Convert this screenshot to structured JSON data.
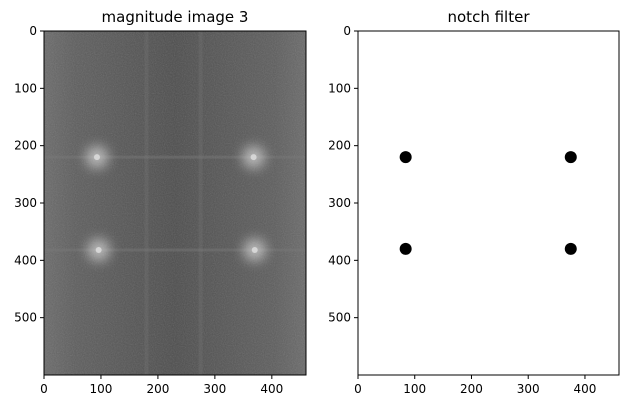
{
  "chart_data": [
    {
      "type": "heatmap",
      "title": "magnitude image 3",
      "xlim": [
        0,
        460
      ],
      "ylim": [
        600,
        0
      ],
      "x_ticks": [
        0,
        100,
        200,
        300,
        400
      ],
      "y_ticks": [
        0,
        100,
        200,
        300,
        400,
        500
      ],
      "colormap": "gray",
      "bright_peaks": [
        {
          "x": 93,
          "y": 220
        },
        {
          "x": 368,
          "y": 220
        },
        {
          "x": 96,
          "y": 382
        },
        {
          "x": 370,
          "y": 382
        }
      ],
      "background_color": "#5e5e5e"
    },
    {
      "type": "scatter",
      "title": "notch filter",
      "xlim": [
        0,
        460
      ],
      "ylim": [
        600,
        0
      ],
      "x_ticks": [
        0,
        100,
        200,
        300,
        400
      ],
      "y_ticks": [
        0,
        100,
        200,
        300,
        400,
        500
      ],
      "points": [
        {
          "x": 84,
          "y": 220
        },
        {
          "x": 375,
          "y": 220
        },
        {
          "x": 84,
          "y": 380
        },
        {
          "x": 375,
          "y": 380
        }
      ],
      "point_color": "#000000",
      "background_color": "#ffffff"
    }
  ]
}
